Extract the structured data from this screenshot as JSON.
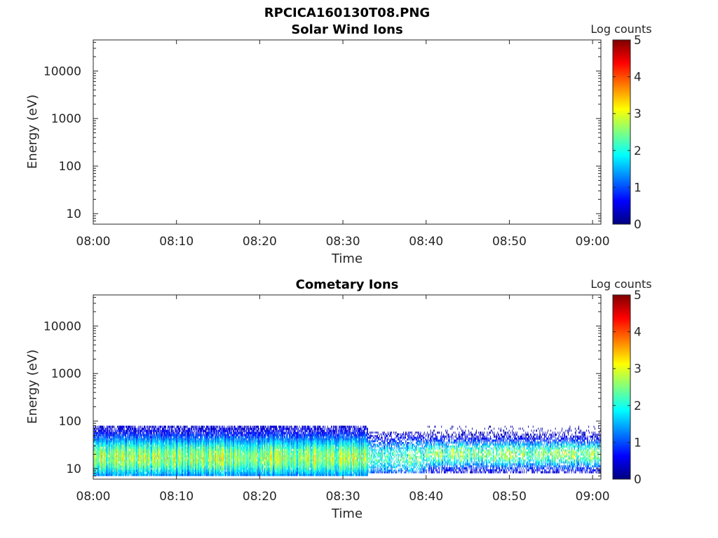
{
  "figure": {
    "title": "RPCICA160130T08.PNG"
  },
  "colormap": {
    "name": "jet",
    "stops": [
      "#00007f",
      "#0000ff",
      "#007fff",
      "#00ffff",
      "#7fff7f",
      "#ffff00",
      "#ff7f00",
      "#ff0000",
      "#7f0000"
    ]
  },
  "chart_data": [
    {
      "type": "heatmap",
      "title": "Solar Wind Ions",
      "xlabel": "Time",
      "ylabel": "Energy (eV)",
      "x_ticks": [
        "08:00",
        "08:10",
        "08:20",
        "08:30",
        "08:40",
        "08:50",
        "09:00"
      ],
      "xlim": [
        "08:00",
        "09:01"
      ],
      "y_scale": "log",
      "y_ticks": [
        10,
        100,
        1000,
        10000
      ],
      "ylim": [
        6,
        45000
      ],
      "colorbar": {
        "label": "Log counts",
        "ticks": [
          0,
          1,
          2,
          3,
          4,
          5
        ],
        "range": [
          0,
          5
        ]
      },
      "bands": []
    },
    {
      "type": "heatmap",
      "title": "Cometary Ions",
      "xlabel": "Time",
      "ylabel": "Energy (eV)",
      "x_ticks": [
        "08:00",
        "08:10",
        "08:20",
        "08:30",
        "08:40",
        "08:50",
        "09:00"
      ],
      "xlim": [
        "08:00",
        "09:01"
      ],
      "y_scale": "log",
      "y_ticks": [
        10,
        100,
        1000,
        10000
      ],
      "ylim": [
        6,
        45000
      ],
      "colorbar": {
        "label": "Log counts",
        "ticks": [
          0,
          1,
          2,
          3,
          4,
          5
        ],
        "range": [
          0,
          5
        ]
      },
      "bands": [
        {
          "start": "08:00",
          "end": "08:33",
          "emax": 80,
          "emin": 7,
          "peak_energy": 17,
          "peak_log_counts": 2.9,
          "width_dex": 0.32,
          "fill": 0.95
        },
        {
          "start": "08:33",
          "end": "08:40",
          "emax": 60,
          "emin": 8,
          "peak_energy": 17,
          "peak_log_counts": 2.5,
          "width_dex": 0.26,
          "fill": 0.55
        },
        {
          "start": "08:40",
          "end": "09:01",
          "emax": 80,
          "emin": 8,
          "peak_energy": 20,
          "peak_log_counts": 2.8,
          "width_dex": 0.2,
          "fill": 0.6
        }
      ]
    }
  ]
}
